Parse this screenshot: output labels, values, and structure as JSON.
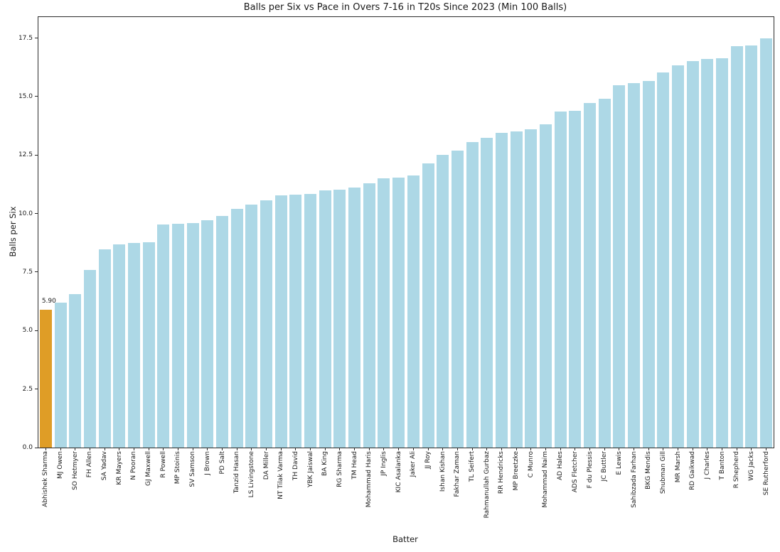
{
  "chart_data": {
    "type": "bar",
    "title": "Balls per Six vs Pace in Overs 7-16 in T20s Since 2023 (Min 100 Balls)",
    "xlabel": "Batter",
    "ylabel": "Balls per Six",
    "ylim": [
      0,
      18.4
    ],
    "yticks": [
      0.0,
      2.5,
      5.0,
      7.5,
      10.0,
      12.5,
      15.0,
      17.5
    ],
    "grid": false,
    "legend": false,
    "bar_color": "#ADD8E6",
    "highlight_color": "#DF9D26",
    "highlight_index": 0,
    "annotation": {
      "bar_index": 0,
      "text": "5.90"
    },
    "categories": [
      "Abhishek Sharma",
      "MJ Owen",
      "SO Hetmyer",
      "FH Allen",
      "SA Yadav",
      "KR Mayers",
      "N Pooran",
      "GJ Maxwell",
      "R Powell",
      "MP Stoinis",
      "SV Samson",
      "J Brown",
      "PD Salt",
      "Tanzid Hasan",
      "LS Livingstone",
      "DA Miller",
      "NT Tilak Varma",
      "TH David",
      "YBK Jaiswal",
      "BA King",
      "RG Sharma",
      "TM Head",
      "Mohammad Haris",
      "JP Inglis",
      "KIC Asalanka",
      "Jaker Ali",
      "JJ Roy",
      "Ishan Kishan",
      "Fakhar Zaman",
      "TL Seifert",
      "Rahmanullah Gurbaz",
      "RR Hendricks",
      "MP Breetzke",
      "C Munro",
      "Mohammad Naim",
      "AD Hales",
      "ADS Fletcher",
      "F du Plessis",
      "JC Buttler",
      "E Lewis",
      "Sahibzada Farhan",
      "BKG Mendis",
      "Shubman Gill",
      "MR Marsh",
      "RD Gaikwad",
      "J Charles",
      "T Banton",
      "R Shepherd",
      "WG Jacks",
      "SE Rutherford"
    ],
    "values": [
      5.9,
      6.2,
      6.55,
      7.6,
      8.46,
      8.68,
      8.73,
      8.78,
      9.53,
      9.57,
      9.6,
      9.71,
      9.89,
      10.21,
      10.38,
      10.56,
      10.77,
      10.8,
      10.85,
      10.99,
      11.03,
      11.11,
      11.29,
      11.52,
      11.54,
      11.63,
      12.16,
      12.5,
      12.7,
      13.05,
      13.24,
      13.44,
      13.52,
      13.6,
      13.83,
      14.35,
      14.39,
      14.73,
      14.92,
      15.49,
      15.57,
      15.68,
      16.02,
      16.35,
      16.52,
      16.6,
      16.63,
      17.16,
      17.2,
      17.49
    ]
  }
}
